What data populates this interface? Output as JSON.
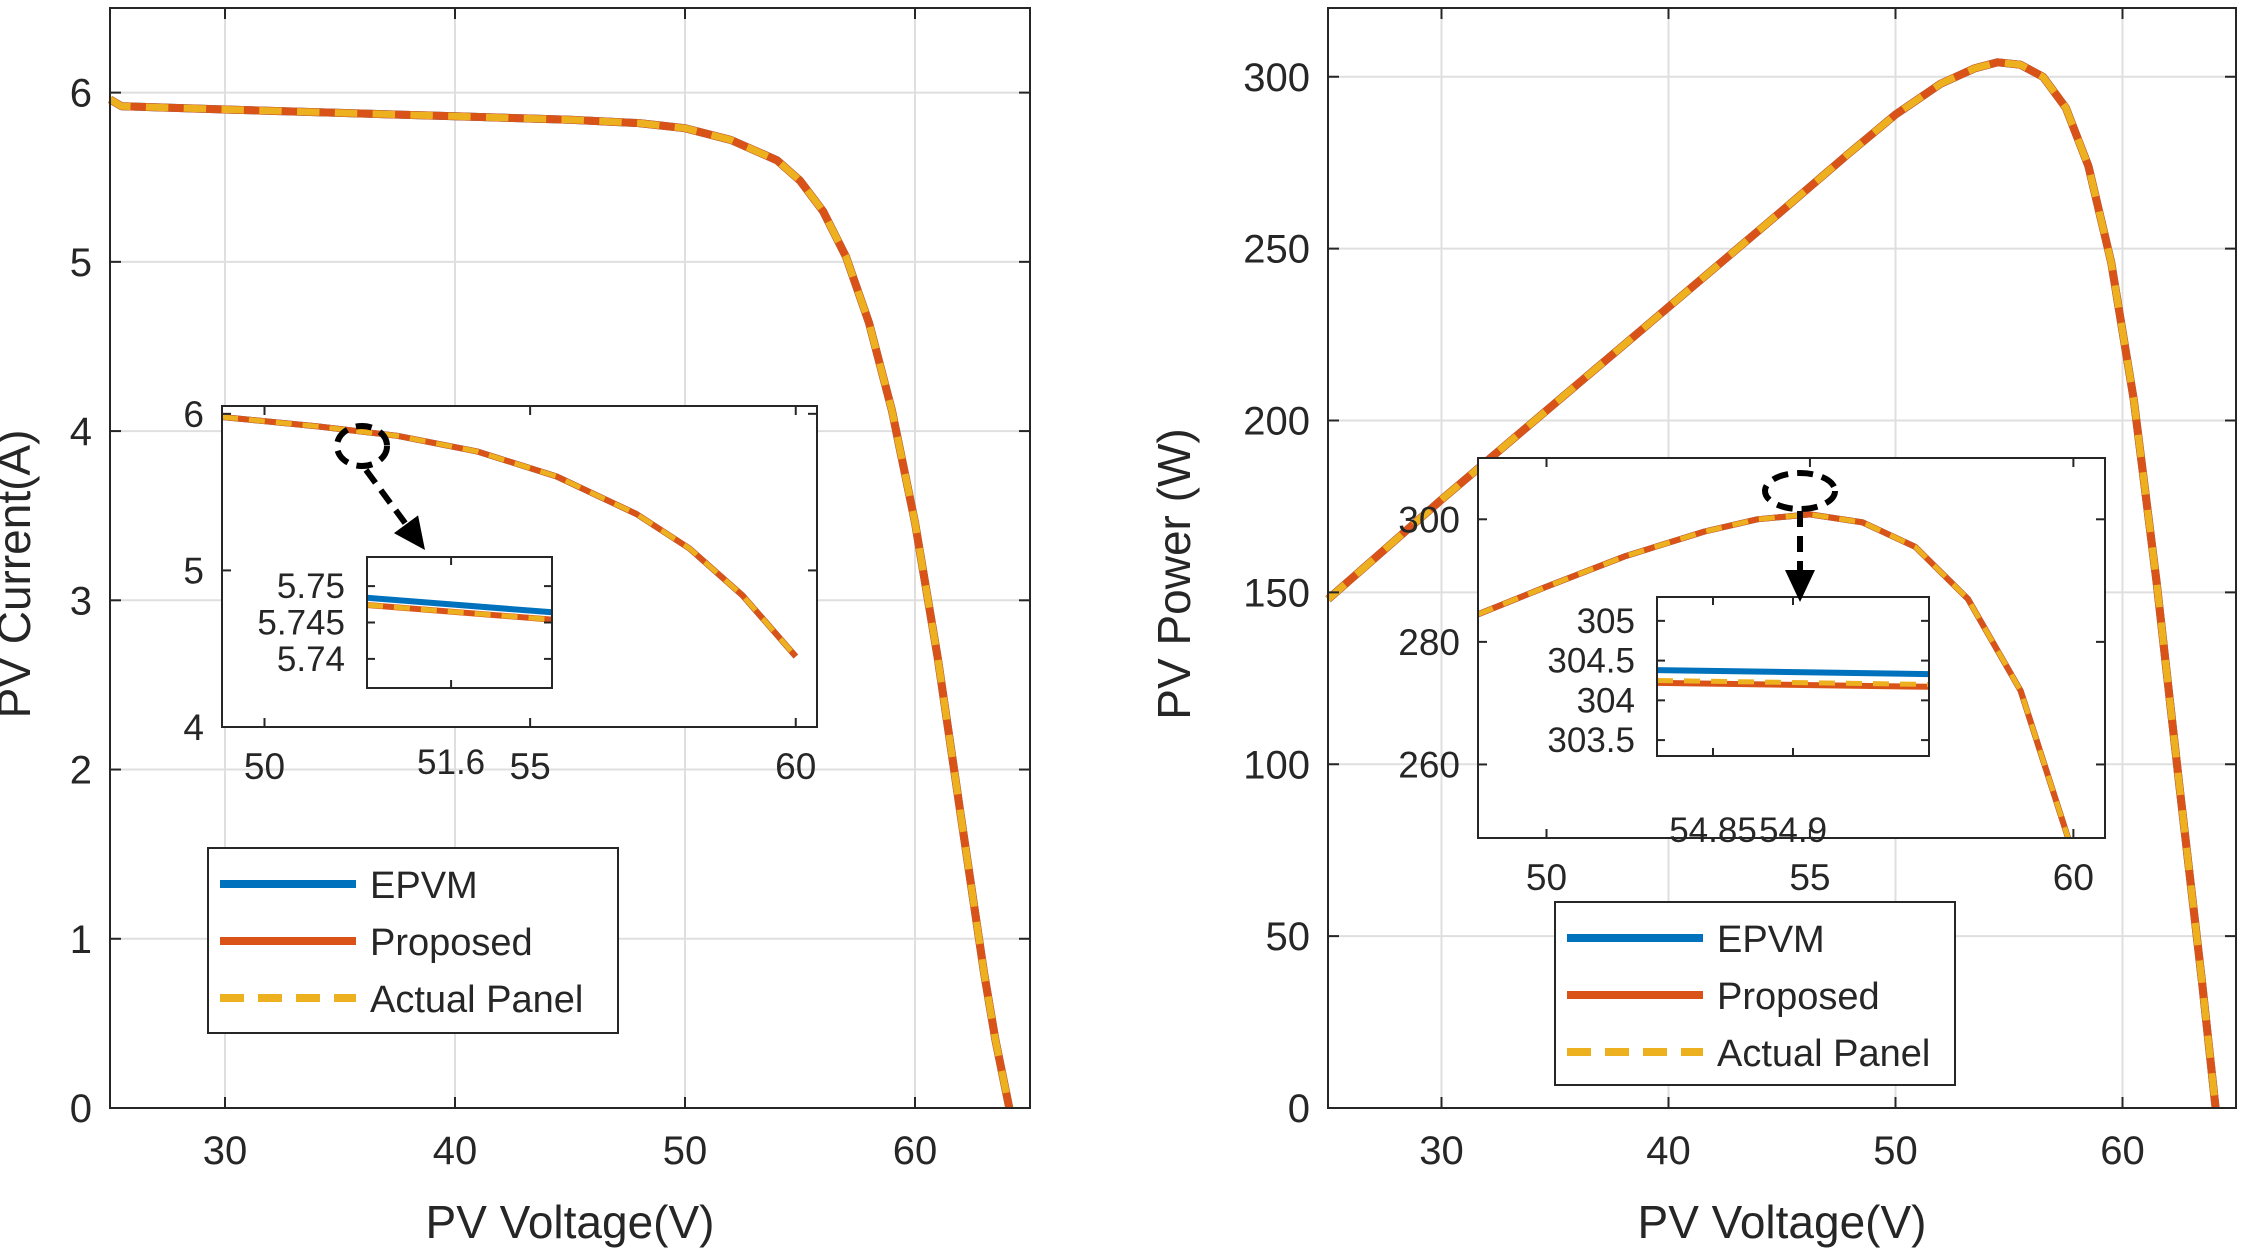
{
  "colors": {
    "epvm": "#0072BD",
    "proposed": "#D95319",
    "actual": "#EDB120",
    "axis": "#262626",
    "grid": "#dfdfdf",
    "marker": "#000000"
  },
  "chart_data": [
    {
      "id": "iv",
      "type": "line",
      "xlabel": "PV Voltage(V)",
      "ylabel": "PV Current(A)",
      "xlim": [
        25,
        65
      ],
      "ylim": [
        0,
        6.5
      ],
      "xticks": [
        30,
        40,
        50,
        60
      ],
      "yticks": [
        0,
        1,
        2,
        3,
        4,
        5,
        6
      ],
      "grid": true,
      "legend": {
        "position": "lower-left",
        "entries": [
          "EPVM",
          "Proposed",
          "Actual Panel"
        ]
      },
      "series": [
        {
          "name": "EPVM",
          "x": [
            25,
            25.5,
            30,
            35,
            40,
            45,
            48,
            50,
            52,
            54,
            55,
            56,
            57,
            58,
            59,
            60,
            61,
            62,
            63,
            63.5,
            64.1
          ],
          "y": [
            5.96,
            5.92,
            5.9,
            5.88,
            5.86,
            5.84,
            5.82,
            5.79,
            5.72,
            5.6,
            5.48,
            5.3,
            5.03,
            4.64,
            4.12,
            3.46,
            2.65,
            1.72,
            0.8,
            0.4,
            0.0
          ]
        },
        {
          "name": "Proposed",
          "x": [
            25,
            25.5,
            30,
            35,
            40,
            45,
            48,
            50,
            52,
            54,
            55,
            56,
            57,
            58,
            59,
            60,
            61,
            62,
            63,
            63.5,
            64.1
          ],
          "y": [
            5.96,
            5.92,
            5.9,
            5.88,
            5.86,
            5.84,
            5.82,
            5.79,
            5.72,
            5.6,
            5.48,
            5.3,
            5.03,
            4.64,
            4.12,
            3.46,
            2.65,
            1.72,
            0.8,
            0.4,
            0.0
          ]
        },
        {
          "name": "Actual Panel",
          "x": [
            25,
            25.5,
            30,
            35,
            40,
            45,
            48,
            50,
            52,
            54,
            55,
            56,
            57,
            58,
            59,
            60,
            61,
            62,
            63,
            63.5,
            64.1
          ],
          "y": [
            5.96,
            5.92,
            5.9,
            5.88,
            5.86,
            5.84,
            5.82,
            5.79,
            5.72,
            5.6,
            5.48,
            5.3,
            5.03,
            4.64,
            4.12,
            3.46,
            2.65,
            1.72,
            0.8,
            0.4,
            0.0
          ]
        }
      ],
      "inset": {
        "xlim": [
          49.2,
          60.4
        ],
        "ylim": [
          4,
          6.05
        ],
        "xticks": [
          50,
          55,
          60
        ],
        "yticks": [
          4,
          5,
          6
        ],
        "series": [
          {
            "name": "EPVM",
            "x": [
              49.2,
              51,
              52.5,
              54,
              55.5,
              57,
              58,
              59,
              60
            ],
            "y": [
              5.98,
              5.92,
              5.86,
              5.76,
              5.6,
              5.36,
              5.14,
              4.84,
              4.45
            ]
          },
          {
            "name": "Proposed",
            "x": [
              49.2,
              51,
              52.5,
              54,
              55.5,
              57,
              58,
              59,
              60
            ],
            "y": [
              5.98,
              5.92,
              5.86,
              5.76,
              5.6,
              5.36,
              5.14,
              4.84,
              4.45
            ]
          },
          {
            "name": "Actual Panel",
            "x": [
              49.2,
              51,
              52.5,
              54,
              55.5,
              57,
              58,
              59,
              60
            ],
            "y": [
              5.98,
              5.92,
              5.86,
              5.76,
              5.6,
              5.36,
              5.14,
              4.84,
              4.45
            ]
          }
        ]
      },
      "zoom": {
        "xlim": [
          51.55,
          51.66
        ],
        "ylim": [
          5.736,
          5.754
        ],
        "xticks": [
          51.6
        ],
        "xtick_labels": [
          "51.6"
        ],
        "yticks": [
          5.74,
          5.745,
          5.75
        ],
        "ytick_labels": [
          "5.74",
          "5.745",
          "5.75"
        ],
        "series": [
          {
            "name": "EPVM",
            "x": [
              51.55,
              51.66
            ],
            "y": [
              5.7484,
              5.7464
            ]
          },
          {
            "name": "Proposed",
            "x": [
              51.55,
              51.66
            ],
            "y": [
              5.7474,
              5.7454
            ]
          },
          {
            "name": "Actual Panel",
            "x": [
              51.55,
              51.66
            ],
            "y": [
              5.7474,
              5.7454
            ]
          }
        ]
      }
    },
    {
      "id": "pv",
      "type": "line",
      "xlabel": "PV Voltage(V)",
      "ylabel": "PV Power (W)",
      "xlim": [
        25,
        65
      ],
      "ylim": [
        0,
        320
      ],
      "xticks": [
        30,
        40,
        50,
        60
      ],
      "yticks": [
        0,
        50,
        100,
        150,
        200,
        250,
        300
      ],
      "grid": true,
      "legend": {
        "position": "lower-center",
        "entries": [
          "EPVM",
          "Proposed",
          "Actual Panel"
        ]
      },
      "series": [
        {
          "name": "EPVM",
          "x": [
            25,
            30,
            35,
            40,
            45,
            48,
            50,
            52,
            53.5,
            54.5,
            55.5,
            56.5,
            57.5,
            58.5,
            59.5,
            60.5,
            61.5,
            62.5,
            63.5,
            64.1
          ],
          "y": [
            148,
            177,
            205,
            233,
            261,
            278,
            289,
            298,
            302.5,
            304.2,
            303.5,
            300,
            291,
            274,
            246,
            206,
            153,
            94,
            37,
            0
          ]
        },
        {
          "name": "Proposed",
          "x": [
            25,
            30,
            35,
            40,
            45,
            48,
            50,
            52,
            53.5,
            54.5,
            55.5,
            56.5,
            57.5,
            58.5,
            59.5,
            60.5,
            61.5,
            62.5,
            63.5,
            64.1
          ],
          "y": [
            148,
            177,
            205,
            233,
            261,
            278,
            289,
            298,
            302.5,
            304.2,
            303.5,
            300,
            291,
            274,
            246,
            206,
            153,
            94,
            37,
            0
          ]
        },
        {
          "name": "Actual Panel",
          "x": [
            25,
            30,
            35,
            40,
            45,
            48,
            50,
            52,
            53.5,
            54.5,
            55.5,
            56.5,
            57.5,
            58.5,
            59.5,
            60.5,
            61.5,
            62.5,
            63.5,
            64.1
          ],
          "y": [
            148,
            177,
            205,
            233,
            261,
            278,
            289,
            298,
            302.5,
            304.2,
            303.5,
            300,
            291,
            274,
            246,
            206,
            153,
            94,
            37,
            0
          ]
        }
      ],
      "inset": {
        "xlim": [
          48.7,
          60.6
        ],
        "ylim": [
          248,
          310
        ],
        "xticks": [
          50,
          55,
          60
        ],
        "yticks": [
          260,
          280,
          300
        ],
        "series": [
          {
            "name": "EPVM",
            "x": [
              48.7,
              50,
              51.5,
              53,
              54,
              55,
              56,
              57,
              58,
              59,
              59.9
            ],
            "y": [
              284.5,
              289,
              294,
              298,
              300,
              300.8,
              299.5,
              295.5,
              287,
              272,
              248
            ]
          },
          {
            "name": "Proposed",
            "x": [
              48.7,
              50,
              51.5,
              53,
              54,
              55,
              56,
              57,
              58,
              59,
              59.9
            ],
            "y": [
              284.5,
              289,
              294,
              298,
              300,
              300.8,
              299.5,
              295.5,
              287,
              272,
              248
            ]
          },
          {
            "name": "Actual Panel",
            "x": [
              48.7,
              50,
              51.5,
              53,
              54,
              55,
              56,
              57,
              58,
              59,
              59.9
            ],
            "y": [
              284.5,
              289,
              294,
              298,
              300,
              300.8,
              299.5,
              295.5,
              287,
              272,
              248
            ]
          }
        ]
      },
      "zoom": {
        "xlim": [
          54.815,
          54.985
        ],
        "ylim": [
          303.3,
          305.3
        ],
        "xticks": [
          54.85,
          54.9
        ],
        "xtick_labels": [
          "54.85",
          "54.9"
        ],
        "yticks": [
          303.5,
          304,
          304.5,
          305
        ],
        "ytick_labels": [
          "303.5",
          "304",
          "304.5",
          "305"
        ],
        "series": [
          {
            "name": "EPVM",
            "x": [
              54.815,
              54.985
            ],
            "y": [
              304.38,
              304.33
            ]
          },
          {
            "name": "Proposed",
            "x": [
              54.815,
              54.985
            ],
            "y": [
              304.22,
              304.17
            ]
          },
          {
            "name": "Actual Panel",
            "x": [
              54.815,
              54.985
            ],
            "y": [
              304.25,
              304.2
            ]
          }
        ]
      }
    }
  ]
}
